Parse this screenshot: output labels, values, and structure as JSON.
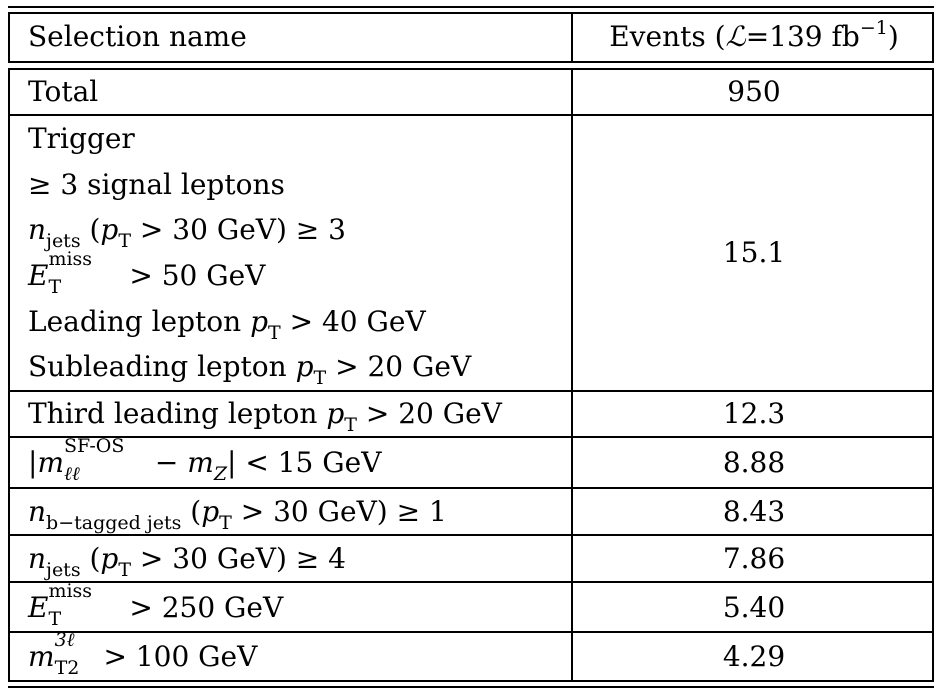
{
  "header": {
    "selection_name": "Selection name",
    "events_prefix": "Events (",
    "lumi_symbol": "ℒ",
    "lumi_value": "=139 fb",
    "lumi_exp": "−1",
    "events_suffix": ")"
  },
  "rows": [
    {
      "label": "Total",
      "events": "950"
    },
    {
      "events": "15.1"
    },
    {
      "events": "12.3"
    },
    {
      "events": "8.88"
    },
    {
      "events": "8.43"
    },
    {
      "events": "7.86"
    },
    {
      "events": "5.40"
    },
    {
      "events": "4.29"
    }
  ],
  "math": {
    "n": "n",
    "m": "m",
    "E": "E",
    "p": "p",
    "jets": "jets",
    "T": "T",
    "miss": "miss",
    "btag_jets": "b−tagged jets",
    "sfos": "SF-OS",
    "ll": "ℓℓ",
    "Z": "Z",
    "T2": "T2",
    "three_l": "3ℓ"
  },
  "text": {
    "trigger": "Trigger",
    "geq3_signal": "≥ 3 signal leptons",
    "pt30_geq3": " > 30 GeV) ≥ 3",
    "gt50": " > 50 GeV",
    "leading": "Leading lepton ",
    "gt40": " > 40 GeV",
    "subleading": "Subleading lepton ",
    "gt20": " > 20 GeV",
    "third": "Third leading lepton ",
    "paren_open": " (",
    "mz_minus": " − ",
    "mz_close": "| < 15 GeV",
    "abs_open": "|",
    "pt30_geq1": " > 30 GeV) ≥ 1",
    "pt30_geq4": " > 30 GeV) ≥ 4",
    "gt250": " > 250 GeV",
    "gt100": " > 100 GeV"
  }
}
